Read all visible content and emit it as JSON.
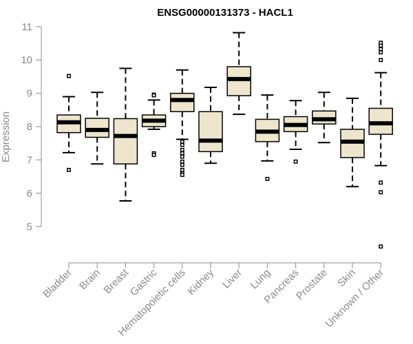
{
  "chart_data": {
    "type": "boxplot",
    "title": "ENSG00000131373 - HACL1",
    "xlabel": "",
    "ylabel": "Expression",
    "ylim": [
      4.2,
      11.1
    ],
    "yticks": [
      5,
      6,
      7,
      8,
      9,
      10,
      11
    ],
    "categories": [
      "Bladder",
      "Brain",
      "Breast",
      "Gastric",
      "Hematopoietic cells",
      "Kidney",
      "Liver",
      "Lung",
      "Pancreas",
      "Prostate",
      "Skin",
      "Unknown / Other"
    ],
    "box_color": "#ede6cc",
    "boxes": [
      {
        "whislo": 7.22,
        "q1": 7.82,
        "med": 8.13,
        "q3": 8.35,
        "whishi": 8.9,
        "outliers": [
          9.52,
          6.7
        ]
      },
      {
        "whislo": 6.88,
        "q1": 7.68,
        "med": 7.9,
        "q3": 8.25,
        "whishi": 9.03,
        "outliers": []
      },
      {
        "whislo": 5.77,
        "q1": 6.88,
        "med": 7.72,
        "q3": 8.24,
        "whishi": 9.75,
        "outliers": []
      },
      {
        "whislo": 7.92,
        "q1": 8.0,
        "med": 8.18,
        "q3": 8.35,
        "whishi": 8.8,
        "outliers": [
          8.96,
          8.94,
          7.2,
          7.15
        ]
      },
      {
        "whislo": 7.62,
        "q1": 8.45,
        "med": 8.8,
        "q3": 9.0,
        "whishi": 9.7,
        "outliers": [
          7.55,
          7.45,
          7.3,
          7.2,
          7.1,
          6.95,
          6.85,
          6.7,
          6.6,
          6.55
        ]
      },
      {
        "whislo": 6.9,
        "q1": 7.25,
        "med": 7.58,
        "q3": 8.45,
        "whishi": 9.18,
        "outliers": []
      },
      {
        "whislo": 8.37,
        "q1": 8.93,
        "med": 9.43,
        "q3": 9.8,
        "whishi": 10.82,
        "outliers": []
      },
      {
        "whislo": 6.97,
        "q1": 7.55,
        "med": 7.85,
        "q3": 8.22,
        "whishi": 8.95,
        "outliers": [
          6.43
        ]
      },
      {
        "whislo": 7.32,
        "q1": 7.85,
        "med": 8.05,
        "q3": 8.3,
        "whishi": 8.78,
        "outliers": [
          6.95
        ]
      },
      {
        "whislo": 7.52,
        "q1": 8.08,
        "med": 8.22,
        "q3": 8.47,
        "whishi": 9.03,
        "outliers": []
      },
      {
        "whislo": 6.2,
        "q1": 7.07,
        "med": 7.55,
        "q3": 7.92,
        "whishi": 8.85,
        "outliers": []
      },
      {
        "whislo": 6.83,
        "q1": 7.77,
        "med": 8.1,
        "q3": 8.55,
        "whishi": 9.62,
        "outliers": [
          10.52,
          10.43,
          10.33,
          10.23,
          10.0,
          6.32,
          6.03,
          4.4
        ]
      }
    ]
  }
}
